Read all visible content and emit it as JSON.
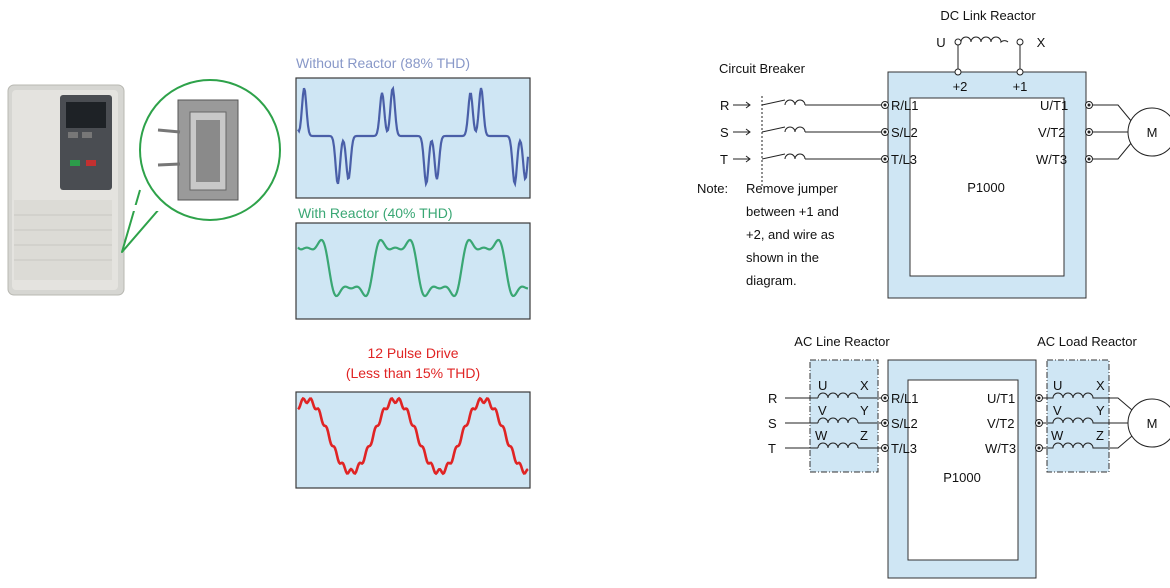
{
  "colors": {
    "panel_fill": "#cfe6f4",
    "without_reactor": "#4a5fa8",
    "with_reactor": "#3aa774",
    "twelve_pulse": "#e02424"
  },
  "waves": {
    "without_title": "Without Reactor (88% THD)",
    "with_title": "With Reactor (40% THD)",
    "pulse_title_1": "12 Pulse Drive",
    "pulse_title_2": "(Less than 15% THD)"
  },
  "dc_diagram": {
    "title": "DC Link Reactor",
    "reactor_u": "U",
    "reactor_x": "X",
    "term_p2": "+2",
    "term_p1": "+1",
    "breaker_label": "Circuit Breaker",
    "phases": [
      "R",
      "S",
      "T"
    ],
    "inputs": [
      "R/L1",
      "S/L2",
      "T/L3"
    ],
    "outputs": [
      "U/T1",
      "V/T2",
      "W/T3"
    ],
    "drive": "P1000",
    "motor": "M",
    "note_label": "Note:",
    "note_lines": [
      "Remove jumper",
      "between +1 and",
      "+2, and wire as",
      "shown in the",
      "diagram."
    ]
  },
  "ac_diagram": {
    "line_title": "AC Line Reactor",
    "load_title": "AC Load Reactor",
    "phases": [
      "R",
      "S",
      "T"
    ],
    "inputs": [
      "R/L1",
      "S/L2",
      "T/L3"
    ],
    "outputs": [
      "U/T1",
      "V/T2",
      "W/T3"
    ],
    "reactor_left": [
      "U",
      "V",
      "W"
    ],
    "reactor_right": [
      "X",
      "Y",
      "Z"
    ],
    "drive": "P1000",
    "motor": "M"
  }
}
